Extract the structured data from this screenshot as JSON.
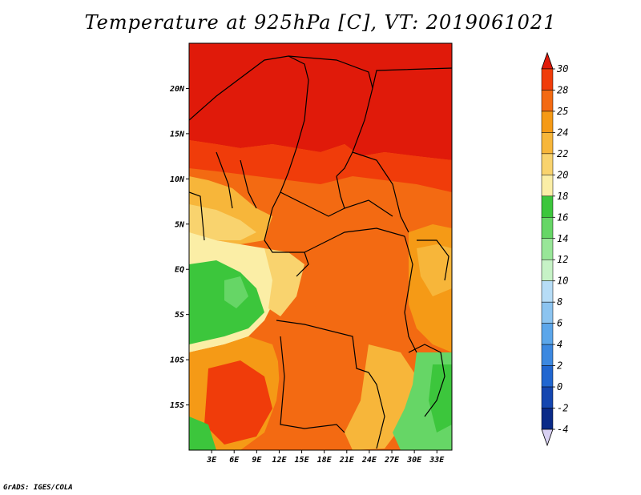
{
  "title": "Temperature at 925hPa [C], VT: 2019061021",
  "credit": "GrADS: IGES/COLA",
  "map": {
    "lon_range": [
      0,
      35
    ],
    "lat_range": [
      -20,
      25
    ],
    "lon_ticks": [
      "3E",
      "6E",
      "9E",
      "12E",
      "15E",
      "18E",
      "21E",
      "24E",
      "27E",
      "30E",
      "33E"
    ],
    "lat_ticks": [
      "20N",
      "15N",
      "10N",
      "5N",
      "EQ",
      "5S",
      "10S",
      "15S"
    ],
    "region": "Central Africa"
  },
  "colorbar": {
    "labels": [
      "30",
      "28",
      "25",
      "24",
      "22",
      "20",
      "18",
      "16",
      "14",
      "12",
      "10",
      "8",
      "6",
      "4",
      "2",
      "0",
      "-2",
      "-4"
    ],
    "colors": [
      "#e01a0a",
      "#f03c0a",
      "#f36a12",
      "#f59a16",
      "#f7b63a",
      "#f9d36e",
      "#fbeea6",
      "#3cc63c",
      "#66d666",
      "#98e698",
      "#c6f2c6",
      "#b6dcf6",
      "#8cc4f0",
      "#5ca6ea",
      "#3c88e0",
      "#2066d0",
      "#1446b0",
      "#0a2a88",
      "#0a1060",
      "#d8d0f2"
    ]
  }
}
